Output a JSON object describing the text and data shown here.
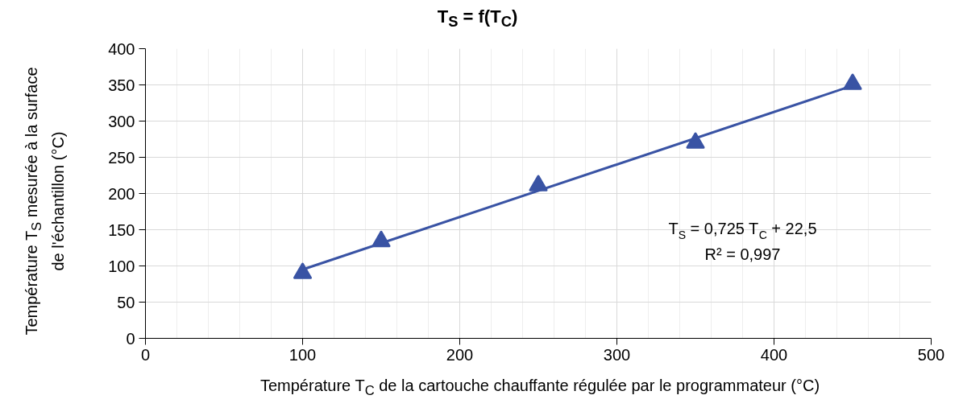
{
  "chart_data": {
    "type": "scatter",
    "title": "T$_{S}$ = f(T$_{C}$)",
    "xlabel": "Température T$_{C}$ de la cartouche chauffante régulée par le programmateur (°C)",
    "ylabel": "Température T$_{S}$ mesurée à la surface de l'échantillon (°C)",
    "x": [
      100,
      150,
      250,
      350,
      450
    ],
    "series": [
      {
        "color": "#3953a4",
        "values": [
          90,
          134,
          211,
          270,
          351
        ],
        "marker": "triangle"
      },
      {
        "type": "line",
        "color": "#3953a4",
        "x": [
          100,
          450
        ],
        "values": [
          95,
          349
        ],
        "line_style": "solid"
      }
    ],
    "annotations": [
      "T$_{S}$ = 0,725 T$_{C}$ + 22,5",
      "R² = 0,997"
    ],
    "xlim": [
      0,
      500
    ],
    "xticks": [
      0,
      100,
      200,
      300,
      400,
      500
    ],
    "ylim": [
      0,
      400
    ],
    "yticks": [
      0,
      50,
      100,
      150,
      200,
      250,
      300,
      350,
      400
    ],
    "grid": true
  }
}
